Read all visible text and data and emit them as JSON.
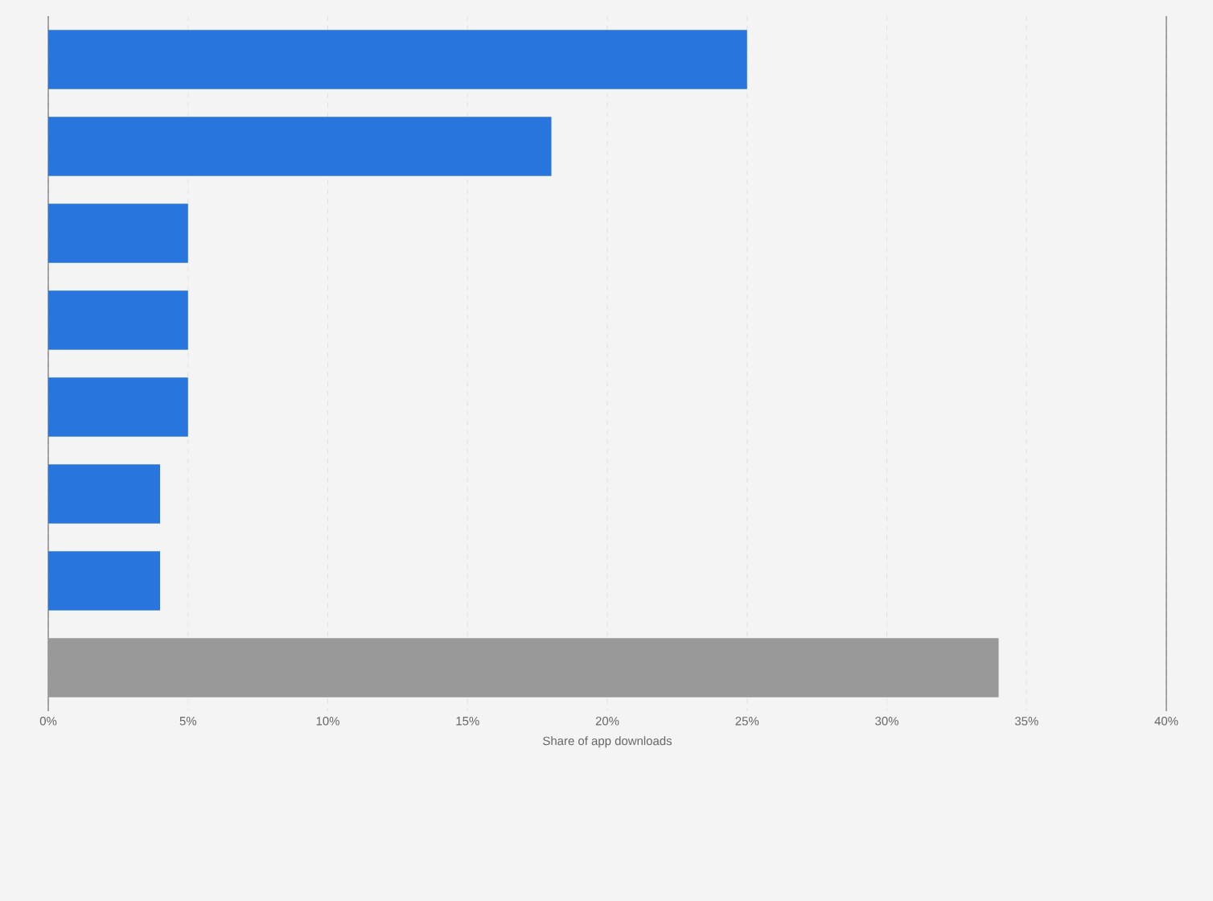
{
  "chart_data": {
    "type": "bar",
    "orientation": "horizontal",
    "xlabel": "Share of app downloads",
    "categories": [
      null,
      null,
      null,
      null,
      null,
      null,
      null,
      null
    ],
    "values": [
      25,
      18,
      5,
      5,
      5,
      4,
      4,
      34
    ],
    "colors": [
      "#2876dd",
      "#2876dd",
      "#2876dd",
      "#2876dd",
      "#2876dd",
      "#2876dd",
      "#2876dd",
      "#999999"
    ],
    "xlim": [
      0,
      40
    ],
    "xticks": [
      {
        "value": 0,
        "label": "0%"
      },
      {
        "value": 5,
        "label": "5%"
      },
      {
        "value": 10,
        "label": "10%"
      },
      {
        "value": 15,
        "label": "15%"
      },
      {
        "value": 20,
        "label": "20%"
      },
      {
        "value": 25,
        "label": "25%"
      },
      {
        "value": 30,
        "label": "30%"
      },
      {
        "value": 35,
        "label": "35%"
      },
      {
        "value": 40,
        "label": "40%"
      }
    ],
    "grid": "x"
  }
}
